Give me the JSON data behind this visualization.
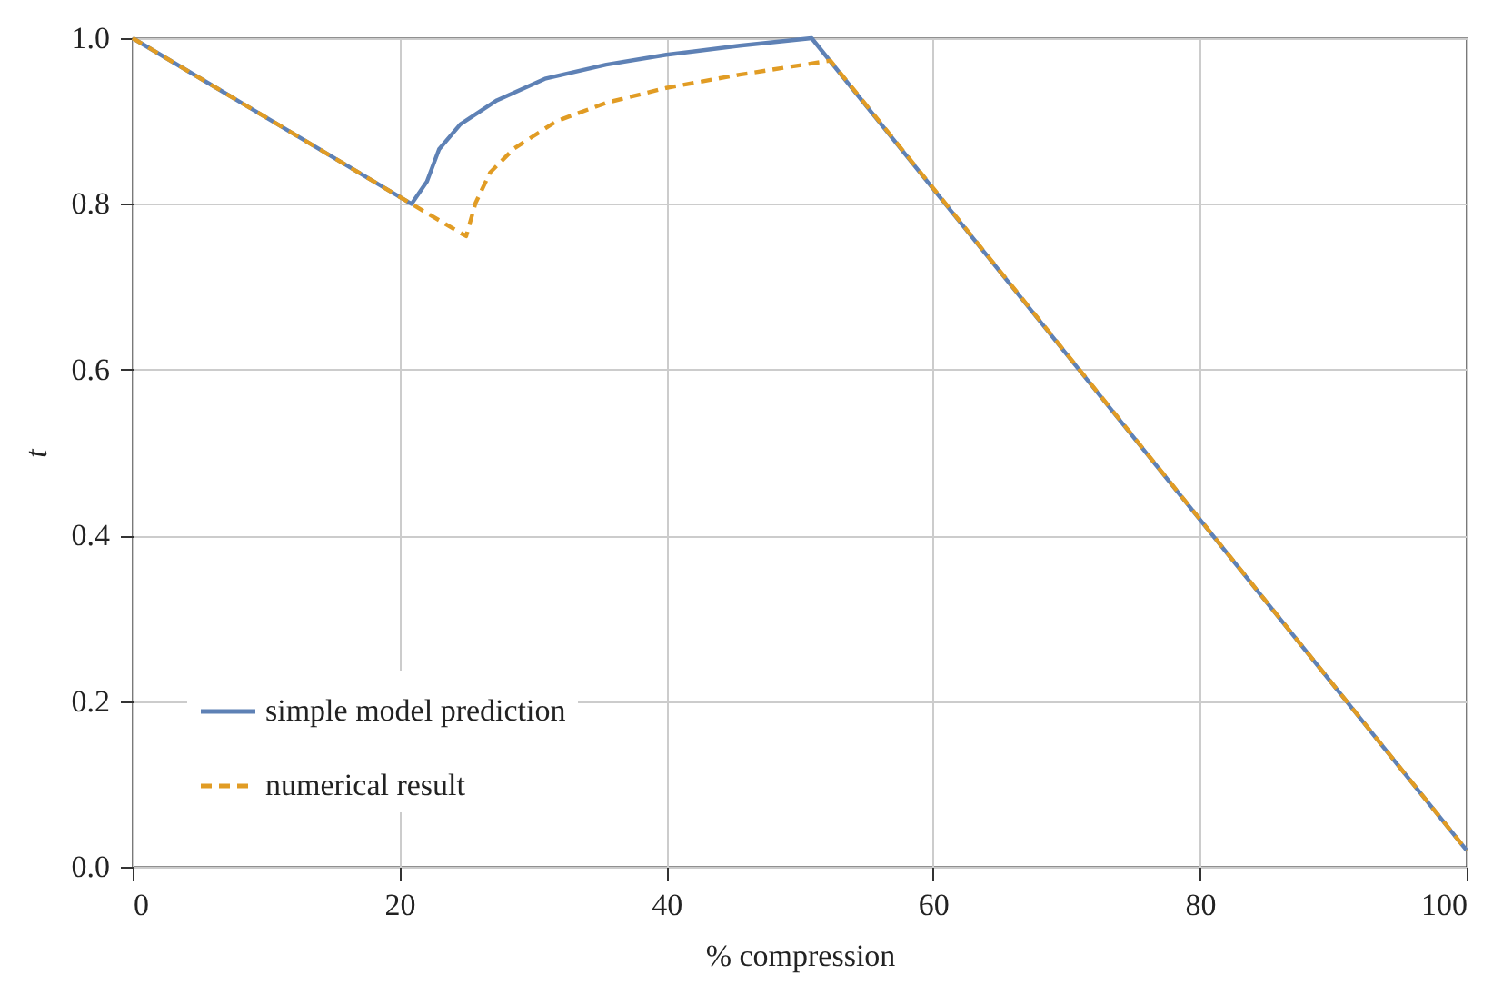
{
  "chart_data": {
    "type": "line",
    "xlabel": "% compression",
    "ylabel": "t",
    "xlim": [
      0,
      100
    ],
    "ylim": [
      0,
      1
    ],
    "xticks": [
      0,
      20,
      40,
      60,
      80,
      100
    ],
    "yticks": [
      {
        "value": 0,
        "label": "0.0"
      },
      {
        "value": 0.2,
        "label": "0.2"
      },
      {
        "value": 0.4,
        "label": "0.4"
      },
      {
        "value": 0.6,
        "label": "0.6"
      },
      {
        "value": 0.8,
        "label": "0.8"
      },
      {
        "value": 1,
        "label": "1.0"
      }
    ],
    "grid": true,
    "legend": "bottom left",
    "marker": "none",
    "series": [
      {
        "name": "simple model prediction",
        "color": "#5e81b5",
        "line_style": "solid",
        "x": [
          0,
          20.9,
          22.06,
          22.97,
          24.56,
          27.3,
          30.9,
          35.5,
          40,
          45.5,
          50.9,
          100
        ],
        "values": [
          1,
          0.8,
          0.827,
          0.866,
          0.896,
          0.925,
          0.951,
          0.968,
          0.98,
          0.991,
          1,
          0.02
        ]
      },
      {
        "name": "numerical result",
        "color": "#e19c24",
        "line_style": "dashed",
        "x": [
          0,
          20.9,
          25,
          25.7,
          26.8,
          28.6,
          31.8,
          35.5,
          40,
          45.5,
          52.3,
          100
        ],
        "values": [
          1,
          0.8,
          0.761,
          0.801,
          0.838,
          0.867,
          0.9,
          0.922,
          0.94,
          0.956,
          0.973,
          0.02
        ]
      }
    ]
  }
}
